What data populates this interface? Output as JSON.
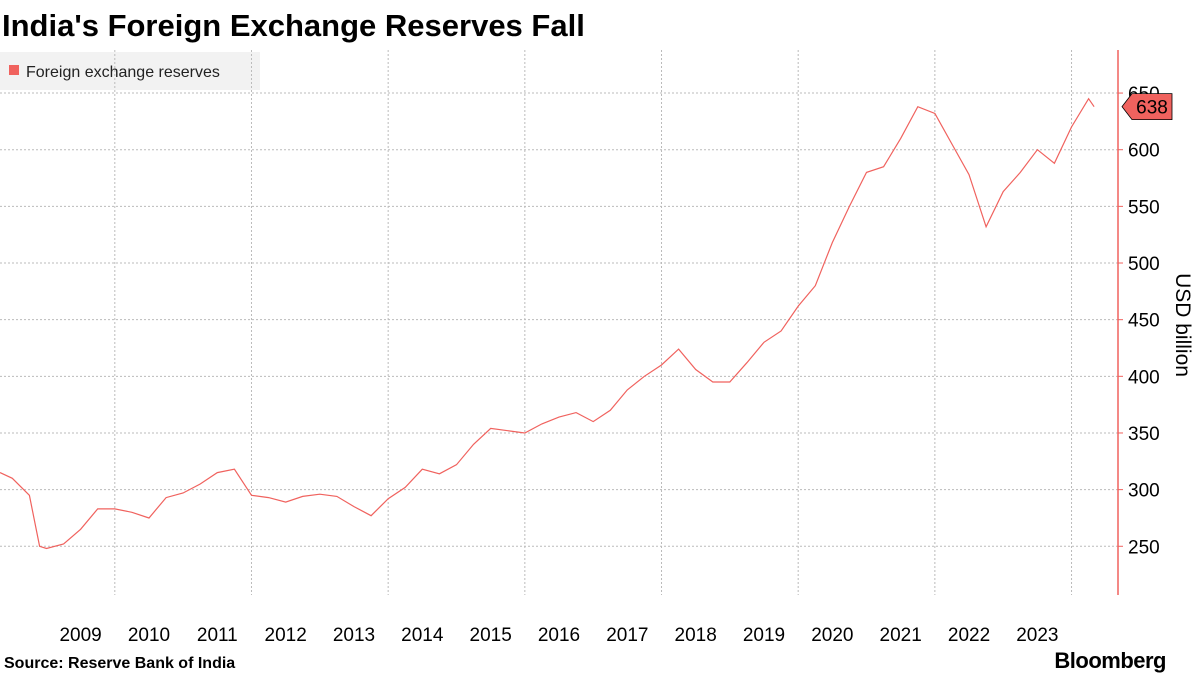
{
  "chart_data": {
    "type": "line",
    "title": "India's Foreign Exchange Reserves Fall",
    "source": "Source: Reserve Bank of India",
    "brand": "Bloomberg",
    "y_axis_label": "USD billion",
    "x": [
      2008.32,
      2008.5,
      2008.75,
      2008.9,
      2009.0,
      2009.25,
      2009.5,
      2009.75,
      2010.0,
      2010.25,
      2010.5,
      2010.75,
      2011.0,
      2011.25,
      2011.5,
      2011.75,
      2012.0,
      2012.25,
      2012.5,
      2012.75,
      2013.0,
      2013.25,
      2013.5,
      2013.75,
      2014.0,
      2014.25,
      2014.5,
      2014.75,
      2015.0,
      2015.25,
      2015.5,
      2015.75,
      2016.0,
      2016.25,
      2016.5,
      2016.75,
      2017.0,
      2017.25,
      2017.5,
      2017.75,
      2018.0,
      2018.25,
      2018.5,
      2018.75,
      2019.0,
      2019.25,
      2019.5,
      2019.75,
      2020.0,
      2020.25,
      2020.5,
      2020.75,
      2021.0,
      2021.25,
      2021.5,
      2021.75,
      2022.0,
      2022.25,
      2022.5,
      2022.75,
      2023.0,
      2023.25,
      2023.5,
      2023.75,
      2024.0,
      2024.25,
      2024.33
    ],
    "series": [
      {
        "name": "Foreign exchange reserves",
        "color": "#f0625e",
        "values": [
          315,
          310,
          295,
          250,
          248,
          252,
          265,
          283,
          283,
          280,
          275,
          293,
          297,
          305,
          315,
          318,
          295,
          293,
          289,
          294,
          296,
          294,
          285,
          277,
          292,
          302,
          318,
          314,
          322,
          340,
          354,
          352,
          350,
          358,
          364,
          368,
          360,
          370,
          388,
          400,
          410,
          424,
          406,
          395,
          395,
          412,
          430,
          440,
          462,
          480,
          518,
          550,
          580,
          585,
          610,
          638,
          632,
          605,
          578,
          532,
          563,
          580,
          600,
          588,
          620,
          645,
          638
        ]
      }
    ],
    "xlim": [
      2008.32,
      2024.68
    ],
    "xticks": [
      {
        "value": 2009.5,
        "label": "2009"
      },
      {
        "value": 2010.5,
        "label": "2010"
      },
      {
        "value": 2011.5,
        "label": "2011"
      },
      {
        "value": 2012.5,
        "label": "2012"
      },
      {
        "value": 2013.5,
        "label": "2013"
      },
      {
        "value": 2014.5,
        "label": "2014"
      },
      {
        "value": 2015.5,
        "label": "2015"
      },
      {
        "value": 2016.5,
        "label": "2016"
      },
      {
        "value": 2017.5,
        "label": "2017"
      },
      {
        "value": 2018.5,
        "label": "2018"
      },
      {
        "value": 2019.5,
        "label": "2019"
      },
      {
        "value": 2020.5,
        "label": "2020"
      },
      {
        "value": 2021.5,
        "label": "2021"
      },
      {
        "value": 2022.5,
        "label": "2022"
      },
      {
        "value": 2023.5,
        "label": "2023"
      }
    ],
    "xgrid": [
      2010,
      2012,
      2014,
      2016,
      2018,
      2020,
      2022,
      2024
    ],
    "ylim": [
      207,
      688
    ],
    "yticks": [
      250,
      300,
      350,
      400,
      450,
      500,
      550,
      600,
      650
    ],
    "grid": true
  }
}
